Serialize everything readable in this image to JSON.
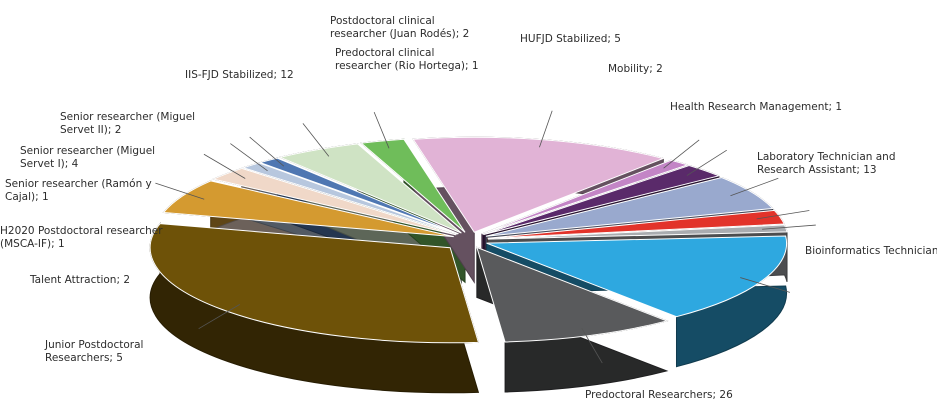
{
  "chart_data": {
    "type": "pie",
    "variant": "3d-exploded",
    "title": "",
    "slices": [
      {
        "label": "Predoctoral Researchers; 26",
        "category": "Predoctoral Researchers",
        "value": 26,
        "color": "#6e5208"
      },
      {
        "label": "Junior Postdoctoral Researchers; 5",
        "category": "Junior Postdoctoral Researchers",
        "value": 5,
        "color": "#d49a30"
      },
      {
        "label": "Talent Attraction; 2",
        "category": "Talent Attraction",
        "value": 2,
        "color": "#f0d8c8"
      },
      {
        "label": "H2020 Postdoctoral researcher (MSCA-IF); 1",
        "category": "H2020 Postdoctoral researcher (MSCA-IF)",
        "value": 1,
        "color": "#b7c7de"
      },
      {
        "label": "Senior researcher (Ramón y Cajal); 1",
        "category": "Senior researcher (Ramón y Cajal)",
        "value": 1,
        "color": "#4f77b2"
      },
      {
        "label": "Senior researcher (Miguel Servet I); 4",
        "category": "Senior researcher (Miguel Servet I)",
        "value": 4,
        "color": "#cfe3c4"
      },
      {
        "label": "Senior researcher (Miguel Servet II); 2",
        "category": "Senior researcher (Miguel Servet II)",
        "value": 2,
        "color": "#6fbd5a"
      },
      {
        "label": "IIS-FJD Stabilized; 12",
        "category": "IIS-FJD Stabilized",
        "value": 12,
        "color": "#e1b3d6"
      },
      {
        "label": "Predoctoral clinical researcher (Rio Hortega); 1",
        "category": "Predoctoral clinical researcher (Rio Hortega)",
        "value": 1,
        "color": "#c385c6"
      },
      {
        "label": "Postdoctoral clinical researcher (Juan Rodés); 2",
        "category": "Postdoctoral clinical researcher (Juan Rodés)",
        "value": 2,
        "color": "#5a2a6a"
      },
      {
        "label": "HUFJD Stabilized; 5",
        "category": "HUFJD Stabilized",
        "value": 5,
        "color": "#99a9ce"
      },
      {
        "label": "Mobility; 2",
        "category": "Mobility",
        "value": 2,
        "color": "#e2332a"
      },
      {
        "label": "Health Research Management; 1",
        "category": "Health Research Management",
        "value": 1,
        "color": "#a9acb0"
      },
      {
        "label": "Laboratory Technician and Research Assistant; 13",
        "category": "Laboratory Technician and Research Assistant",
        "value": 13,
        "color": "#2ea8e0"
      },
      {
        "label": "Bioinformatics Technician;",
        "category": "Bioinformatics Technician",
        "value": null,
        "color": "#595a5c"
      }
    ]
  }
}
